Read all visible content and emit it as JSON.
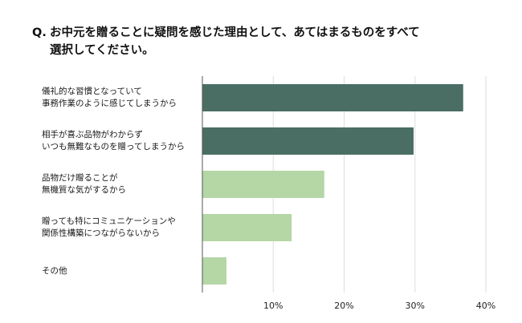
{
  "question": {
    "prefix": "Q.",
    "line1": "お中元を贈ることに疑問を感じた理由として、あてはまるものをすべて",
    "line2": "選択してください。"
  },
  "chart_data": {
    "type": "bar",
    "orientation": "horizontal",
    "categories": [
      [
        "儀礼的な習慣となっていて",
        "事務作業のように感じてしまうから"
      ],
      [
        "相手が喜ぶ品物がわからず",
        "いつも無難なものを贈ってしまうから"
      ],
      [
        "品物だけ贈ることが",
        "無機質な気がするから"
      ],
      [
        "贈っても特にコミュニケーションや",
        "関係性構築につながらないから"
      ],
      [
        "その他"
      ]
    ],
    "values": [
      36.8,
      29.8,
      17.2,
      12.6,
      3.4
    ],
    "unit": "%",
    "xlim": [
      0,
      40
    ],
    "xticks": [
      10,
      20,
      30,
      40
    ],
    "xtick_labels": [
      "10%",
      "20%",
      "30%",
      "40%"
    ],
    "grid": true,
    "colors": [
      "#4a6e64",
      "#4a6e64",
      "#b5d6a5",
      "#b5d6a5",
      "#b5d6a5"
    ],
    "axis_color": "#555555",
    "grid_color": "#dddddd"
  }
}
